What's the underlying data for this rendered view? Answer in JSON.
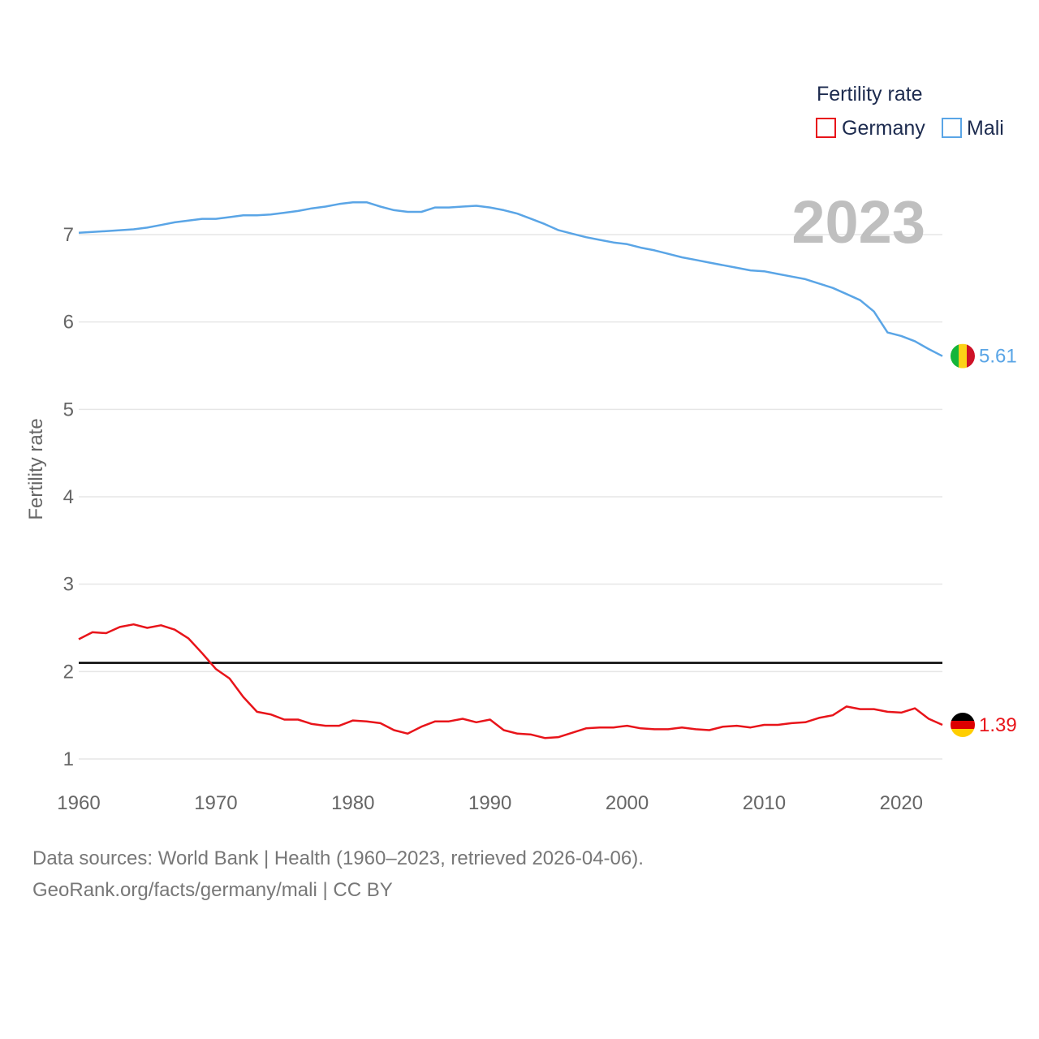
{
  "chart_data": {
    "type": "line",
    "title": "",
    "xlabel": "",
    "ylabel": "Fertility rate",
    "xlim": [
      1960,
      2023
    ],
    "ylim": [
      0.75,
      7.75
    ],
    "yticks": [
      1,
      2,
      3,
      4,
      5,
      6,
      7
    ],
    "xticks": [
      1960,
      1970,
      1980,
      1990,
      2000,
      2010,
      2020
    ],
    "year_label": "2023",
    "legend": {
      "title": "Fertility rate",
      "position": "top-right"
    },
    "reference_line": {
      "y": 2.1,
      "color": "#000000"
    },
    "x": [
      1960,
      1961,
      1962,
      1963,
      1964,
      1965,
      1966,
      1967,
      1968,
      1969,
      1970,
      1971,
      1972,
      1973,
      1974,
      1975,
      1976,
      1977,
      1978,
      1979,
      1980,
      1981,
      1982,
      1983,
      1984,
      1985,
      1986,
      1987,
      1988,
      1989,
      1990,
      1991,
      1992,
      1993,
      1994,
      1995,
      1996,
      1997,
      1998,
      1999,
      2000,
      2001,
      2002,
      2003,
      2004,
      2005,
      2006,
      2007,
      2008,
      2009,
      2010,
      2011,
      2012,
      2013,
      2014,
      2015,
      2016,
      2017,
      2018,
      2019,
      2020,
      2021,
      2022,
      2023
    ],
    "series": [
      {
        "name": "Germany",
        "color": "#e8141a",
        "flag": "germany-flag",
        "end_label": "1.39",
        "values": [
          2.37,
          2.45,
          2.44,
          2.51,
          2.54,
          2.5,
          2.53,
          2.48,
          2.38,
          2.21,
          2.03,
          1.92,
          1.71,
          1.54,
          1.51,
          1.45,
          1.45,
          1.4,
          1.38,
          1.38,
          1.44,
          1.43,
          1.41,
          1.33,
          1.29,
          1.37,
          1.43,
          1.43,
          1.46,
          1.42,
          1.45,
          1.33,
          1.29,
          1.28,
          1.24,
          1.25,
          1.3,
          1.35,
          1.36,
          1.36,
          1.38,
          1.35,
          1.34,
          1.34,
          1.36,
          1.34,
          1.33,
          1.37,
          1.38,
          1.36,
          1.39,
          1.39,
          1.41,
          1.42,
          1.47,
          1.5,
          1.6,
          1.57,
          1.57,
          1.54,
          1.53,
          1.58,
          1.46,
          1.39
        ]
      },
      {
        "name": "Mali",
        "color": "#5aa5e6",
        "flag": "mali-flag",
        "end_label": "5.61",
        "values": [
          7.02,
          7.03,
          7.04,
          7.05,
          7.06,
          7.08,
          7.11,
          7.14,
          7.16,
          7.18,
          7.18,
          7.2,
          7.22,
          7.22,
          7.23,
          7.25,
          7.27,
          7.3,
          7.32,
          7.35,
          7.37,
          7.37,
          7.32,
          7.28,
          7.26,
          7.26,
          7.31,
          7.31,
          7.32,
          7.33,
          7.31,
          7.28,
          7.24,
          7.18,
          7.12,
          7.05,
          7.01,
          6.97,
          6.94,
          6.91,
          6.89,
          6.85,
          6.82,
          6.78,
          6.74,
          6.71,
          6.68,
          6.65,
          6.62,
          6.59,
          6.58,
          6.55,
          6.52,
          6.49,
          6.44,
          6.39,
          6.32,
          6.25,
          6.12,
          5.88,
          5.84,
          5.78,
          5.69,
          5.61
        ]
      }
    ]
  },
  "footer": {
    "line1": "Data sources: World Bank | Health (1960–2023, retrieved 2026-04-06).",
    "line2": "GeoRank.org/facts/germany/mali | CC BY"
  }
}
